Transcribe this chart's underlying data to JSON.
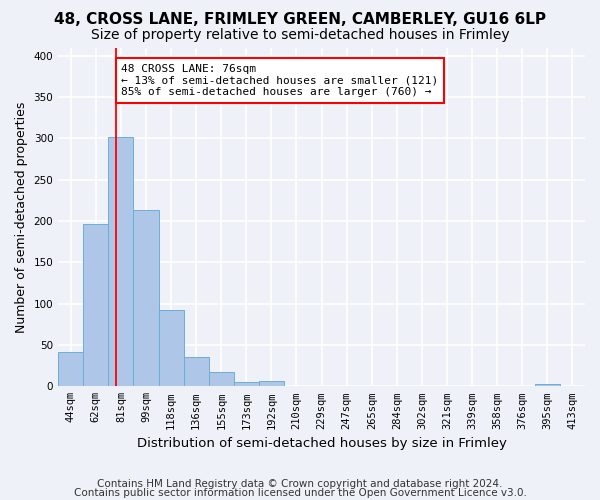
{
  "title1": "48, CROSS LANE, FRIMLEY GREEN, CAMBERLEY, GU16 6LP",
  "title2": "Size of property relative to semi-detached houses in Frimley",
  "xlabel": "Distribution of semi-detached houses by size in Frimley",
  "ylabel": "Number of semi-detached properties",
  "footnote1": "Contains HM Land Registry data © Crown copyright and database right 2024.",
  "footnote2": "Contains public sector information licensed under the Open Government Licence v3.0.",
  "bins": [
    "44sqm",
    "62sqm",
    "81sqm",
    "99sqm",
    "118sqm",
    "136sqm",
    "155sqm",
    "173sqm",
    "192sqm",
    "210sqm",
    "229sqm",
    "247sqm",
    "265sqm",
    "284sqm",
    "302sqm",
    "321sqm",
    "339sqm",
    "358sqm",
    "376sqm",
    "395sqm",
    "413sqm"
  ],
  "values": [
    42,
    196,
    302,
    213,
    92,
    35,
    17,
    5,
    6,
    0,
    0,
    0,
    0,
    0,
    0,
    0,
    0,
    0,
    0,
    3,
    0
  ],
  "bar_color": "#aec6e8",
  "bar_edge_color": "#6aaed6",
  "property_line_x": 1.82,
  "annotation_line1": "48 CROSS LANE: 76sqm",
  "annotation_line2": "← 13% of semi-detached houses are smaller (121)",
  "annotation_line3": "85% of semi-detached houses are larger (760) →",
  "annotation_box_color": "white",
  "annotation_box_edge_color": "red",
  "vline_color": "red",
  "ylim": [
    0,
    410
  ],
  "yticks": [
    0,
    50,
    100,
    150,
    200,
    250,
    300,
    350,
    400
  ],
  "background_color": "#eef2f8",
  "grid_color": "white",
  "title1_fontsize": 11,
  "title2_fontsize": 10,
  "xlabel_fontsize": 9.5,
  "ylabel_fontsize": 9,
  "footnote_fontsize": 7.5,
  "tick_fontsize": 7.5,
  "annot_fontsize": 8
}
